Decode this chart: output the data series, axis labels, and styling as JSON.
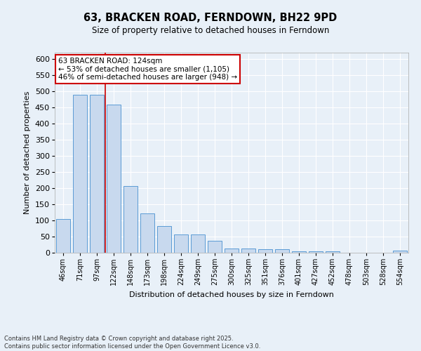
{
  "title": "63, BRACKEN ROAD, FERNDOWN, BH22 9PD",
  "subtitle": "Size of property relative to detached houses in Ferndown",
  "xlabel": "Distribution of detached houses by size in Ferndown",
  "ylabel": "Number of detached properties",
  "categories": [
    "46sqm",
    "71sqm",
    "97sqm",
    "122sqm",
    "148sqm",
    "173sqm",
    "198sqm",
    "224sqm",
    "249sqm",
    "275sqm",
    "300sqm",
    "325sqm",
    "351sqm",
    "376sqm",
    "401sqm",
    "427sqm",
    "452sqm",
    "478sqm",
    "503sqm",
    "528sqm",
    "554sqm"
  ],
  "values": [
    105,
    490,
    490,
    460,
    207,
    122,
    82,
    57,
    57,
    38,
    13,
    13,
    11,
    11,
    4,
    4,
    4,
    0,
    0,
    0,
    6
  ],
  "bar_color": "#c8d9ee",
  "bar_edge_color": "#5b9bd5",
  "red_line_x": 2.5,
  "annotation_text": "63 BRACKEN ROAD: 124sqm\n← 53% of detached houses are smaller (1,105)\n46% of semi-detached houses are larger (948) →",
  "annotation_box_color": "white",
  "annotation_box_edge_color": "#cc0000",
  "red_line_color": "#cc0000",
  "background_color": "#e8f0f8",
  "axes_background": "#e8f0f8",
  "grid_color": "white",
  "yticks": [
    0,
    50,
    100,
    150,
    200,
    250,
    300,
    350,
    400,
    450,
    500,
    550,
    600
  ],
  "ylim": [
    0,
    620
  ],
  "footer": "Contains HM Land Registry data © Crown copyright and database right 2025.\nContains public sector information licensed under the Open Government Licence v3.0."
}
